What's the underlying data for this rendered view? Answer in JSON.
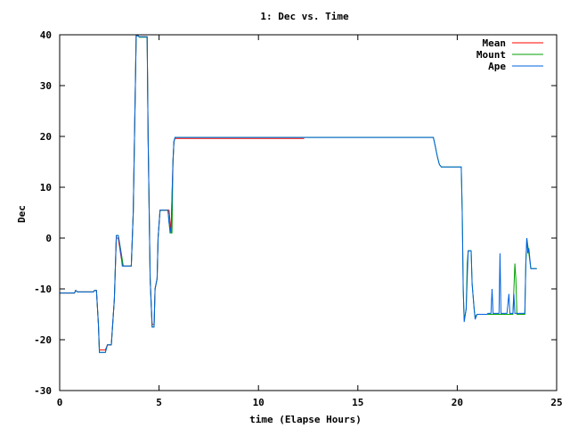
{
  "chart_data": {
    "type": "line",
    "title": "1: Dec vs. Time",
    "xlabel": "time (Elapse Hours)",
    "ylabel": "Dec",
    "xlim": [
      0,
      25
    ],
    "ylim": [
      -30,
      40
    ],
    "xticks": [
      0,
      5,
      10,
      15,
      20,
      25
    ],
    "yticks": [
      -30,
      -20,
      -10,
      0,
      10,
      20,
      30,
      40
    ],
    "grid": false,
    "legend_position": "top-right",
    "series": [
      {
        "name": "Mean",
        "color": "#ff0000",
        "points": [
          [
            0,
            -10.8
          ],
          [
            0.75,
            -10.8
          ],
          [
            0.8,
            -10.3
          ],
          [
            0.9,
            -10.6
          ],
          [
            1.7,
            -10.6
          ],
          [
            1.75,
            -10.3
          ],
          [
            1.85,
            -10.3
          ],
          [
            1.95,
            -17
          ],
          [
            2.0,
            -22
          ],
          [
            2.3,
            -22
          ],
          [
            2.4,
            -21
          ],
          [
            2.6,
            -21
          ],
          [
            2.75,
            -12
          ],
          [
            2.85,
            0
          ],
          [
            2.95,
            0
          ],
          [
            3.1,
            -4
          ],
          [
            3.2,
            -5.5
          ],
          [
            3.6,
            -5.5
          ],
          [
            3.7,
            5
          ],
          [
            3.8,
            28
          ],
          [
            3.85,
            39.8
          ],
          [
            3.95,
            39.8
          ],
          [
            4.0,
            39.6
          ],
          [
            4.4,
            39.6
          ],
          [
            4.45,
            20
          ],
          [
            4.55,
            -8
          ],
          [
            4.65,
            -17
          ],
          [
            4.75,
            -17
          ],
          [
            4.8,
            -10
          ],
          [
            4.9,
            -8
          ],
          [
            4.95,
            0
          ],
          [
            5.05,
            5.5
          ],
          [
            5.5,
            5.5
          ],
          [
            5.6,
            1
          ],
          [
            5.7,
            15
          ],
          [
            5.75,
            19
          ],
          [
            5.8,
            19.6
          ],
          [
            12.3,
            19.6
          ]
        ]
      },
      {
        "name": "Mount",
        "color": "#00a000",
        "points": [
          [
            0,
            -10.8
          ],
          [
            0.75,
            -10.8
          ],
          [
            0.8,
            -10.3
          ],
          [
            0.9,
            -10.6
          ],
          [
            1.7,
            -10.6
          ],
          [
            1.75,
            -10.3
          ],
          [
            1.85,
            -10.3
          ],
          [
            1.95,
            -17
          ],
          [
            2.0,
            -22.5
          ],
          [
            2.3,
            -22.5
          ],
          [
            2.4,
            -21
          ],
          [
            2.6,
            -21
          ],
          [
            2.75,
            -12
          ],
          [
            2.85,
            0.5
          ],
          [
            2.95,
            0.5
          ],
          [
            3.1,
            -3
          ],
          [
            3.2,
            -5.5
          ],
          [
            3.6,
            -5.5
          ],
          [
            3.7,
            5
          ],
          [
            3.8,
            28
          ],
          [
            3.85,
            39.8
          ],
          [
            3.95,
            39.8
          ],
          [
            4.0,
            39.5
          ],
          [
            4.4,
            39.5
          ],
          [
            4.45,
            20
          ],
          [
            4.55,
            -8
          ],
          [
            4.65,
            -17.5
          ],
          [
            4.75,
            -17.5
          ],
          [
            4.8,
            -10
          ],
          [
            4.9,
            -8
          ],
          [
            4.95,
            0
          ],
          [
            5.05,
            5.5
          ],
          [
            5.45,
            5.5
          ],
          [
            5.55,
            1
          ],
          [
            5.65,
            1
          ],
          [
            5.7,
            15
          ],
          [
            5.75,
            19
          ],
          [
            5.8,
            19.8
          ],
          [
            18.8,
            19.8
          ],
          [
            18.9,
            18
          ],
          [
            19.0,
            16
          ],
          [
            19.1,
            14.5
          ],
          [
            19.2,
            14
          ],
          [
            20.2,
            14
          ],
          [
            20.25,
            5
          ],
          [
            20.3,
            -10
          ],
          [
            20.35,
            -16
          ],
          [
            20.45,
            -14
          ],
          [
            20.5,
            -5
          ],
          [
            20.55,
            -2.5
          ],
          [
            20.7,
            -2.5
          ],
          [
            20.75,
            -9
          ],
          [
            20.85,
            -14
          ],
          [
            20.9,
            -15.5
          ],
          [
            21.0,
            -15
          ],
          [
            22.8,
            -15
          ],
          [
            22.85,
            -10
          ],
          [
            22.9,
            -5
          ],
          [
            22.95,
            -8
          ],
          [
            23.0,
            -15
          ],
          [
            23.4,
            -15
          ],
          [
            23.45,
            -5
          ],
          [
            23.5,
            0
          ],
          [
            23.6,
            -3
          ],
          [
            23.7,
            -6
          ],
          [
            24.0,
            -6
          ]
        ]
      },
      {
        "name": "Ape",
        "color": "#0060e0",
        "points": [
          [
            0,
            -10.8
          ],
          [
            0.75,
            -10.8
          ],
          [
            0.8,
            -10.3
          ],
          [
            0.9,
            -10.6
          ],
          [
            1.7,
            -10.6
          ],
          [
            1.75,
            -10.3
          ],
          [
            1.85,
            -10.3
          ],
          [
            1.95,
            -17
          ],
          [
            2.0,
            -22.5
          ],
          [
            2.3,
            -22.5
          ],
          [
            2.4,
            -21
          ],
          [
            2.6,
            -21
          ],
          [
            2.75,
            -12
          ],
          [
            2.85,
            0.5
          ],
          [
            2.95,
            0.5
          ],
          [
            3.05,
            -2
          ],
          [
            3.15,
            -5.5
          ],
          [
            3.6,
            -5.5
          ],
          [
            3.7,
            5
          ],
          [
            3.8,
            28
          ],
          [
            3.85,
            39.8
          ],
          [
            3.95,
            39.8
          ],
          [
            4.0,
            39.6
          ],
          [
            4.4,
            39.6
          ],
          [
            4.45,
            20
          ],
          [
            4.55,
            -8
          ],
          [
            4.65,
            -17.5
          ],
          [
            4.75,
            -17.5
          ],
          [
            4.8,
            -10
          ],
          [
            4.9,
            -8
          ],
          [
            4.95,
            0
          ],
          [
            5.05,
            5.5
          ],
          [
            5.45,
            5.5
          ],
          [
            5.5,
            3
          ],
          [
            5.6,
            1
          ],
          [
            5.7,
            15
          ],
          [
            5.75,
            19
          ],
          [
            5.8,
            19.8
          ],
          [
            18.8,
            19.8
          ],
          [
            18.9,
            18
          ],
          [
            19.0,
            16
          ],
          [
            19.1,
            14.5
          ],
          [
            19.2,
            14
          ],
          [
            20.2,
            14
          ],
          [
            20.25,
            5
          ],
          [
            20.3,
            -10
          ],
          [
            20.35,
            -16.5
          ],
          [
            20.45,
            -14
          ],
          [
            20.5,
            -8
          ],
          [
            20.55,
            -2.5
          ],
          [
            20.7,
            -2.5
          ],
          [
            20.75,
            -9
          ],
          [
            20.85,
            -14
          ],
          [
            20.9,
            -16
          ],
          [
            21.0,
            -15
          ],
          [
            21.5,
            -15
          ],
          [
            21.55,
            -14.8
          ],
          [
            21.7,
            -14.8
          ],
          [
            21.75,
            -10
          ],
          [
            21.8,
            -14.8
          ],
          [
            22.1,
            -14.8
          ],
          [
            22.15,
            -3
          ],
          [
            22.2,
            -14.8
          ],
          [
            22.5,
            -14.8
          ],
          [
            22.6,
            -11
          ],
          [
            22.65,
            -14.8
          ],
          [
            22.8,
            -14.8
          ],
          [
            22.85,
            -11
          ],
          [
            22.9,
            -14.8
          ],
          [
            23.4,
            -14.8
          ],
          [
            23.45,
            -5
          ],
          [
            23.5,
            0
          ],
          [
            23.55,
            -3
          ],
          [
            23.6,
            -2
          ],
          [
            23.7,
            -6
          ],
          [
            24.0,
            -6
          ]
        ]
      }
    ]
  }
}
